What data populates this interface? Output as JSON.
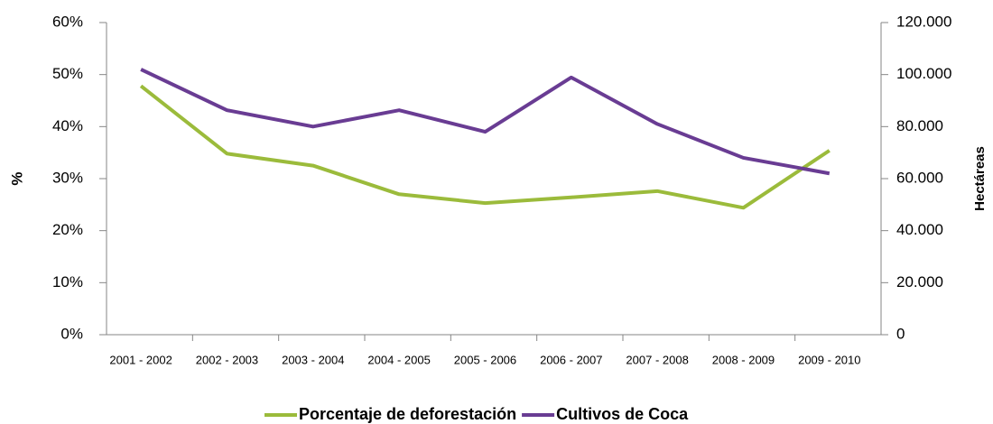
{
  "chart_data": {
    "type": "line",
    "categories": [
      "2001 - 2002",
      "2002 - 2003",
      "2003 - 2004",
      "2004 - 2005",
      "2005 - 2006",
      "2006 - 2007",
      "2007 - 2008",
      "2008 - 2009",
      "2009 - 2010"
    ],
    "series": [
      {
        "name": "Porcentaje de deforestación",
        "color": "#9bbb3b",
        "axis": "y",
        "values": [
          47.8,
          34.8,
          32.5,
          27.0,
          25.3,
          26.4,
          27.6,
          24.4,
          35.4
        ]
      },
      {
        "name": "Cultivos de Coca",
        "color": "#693c93",
        "axis": "y2",
        "values": [
          102000,
          86300,
          80000,
          86300,
          78000,
          98900,
          81000,
          68000,
          62000
        ]
      }
    ],
    "ylabel": "%",
    "y2label": "Hectáreas",
    "ylim": [
      0,
      60
    ],
    "yticks": [
      {
        "value": 0,
        "label": "0%"
      },
      {
        "value": 10,
        "label": "10%"
      },
      {
        "value": 20,
        "label": "20%"
      },
      {
        "value": 30,
        "label": "30%"
      },
      {
        "value": 40,
        "label": "40%"
      },
      {
        "value": 50,
        "label": "50%"
      },
      {
        "value": 60,
        "label": "60%"
      }
    ],
    "y2lim": [
      0,
      120000
    ],
    "y2ticks": [
      0,
      {
        "value": 20000,
        "label": "20.000"
      },
      {
        "value": 40000,
        "label": "40.000"
      },
      {
        "value": 60000,
        "label": "60.000"
      },
      {
        "value": 80000,
        "label": "80.000"
      },
      {
        "value": 100000,
        "label": "100.000"
      },
      {
        "value": 120000,
        "label": "120.000"
      }
    ],
    "legend": "bottom"
  }
}
